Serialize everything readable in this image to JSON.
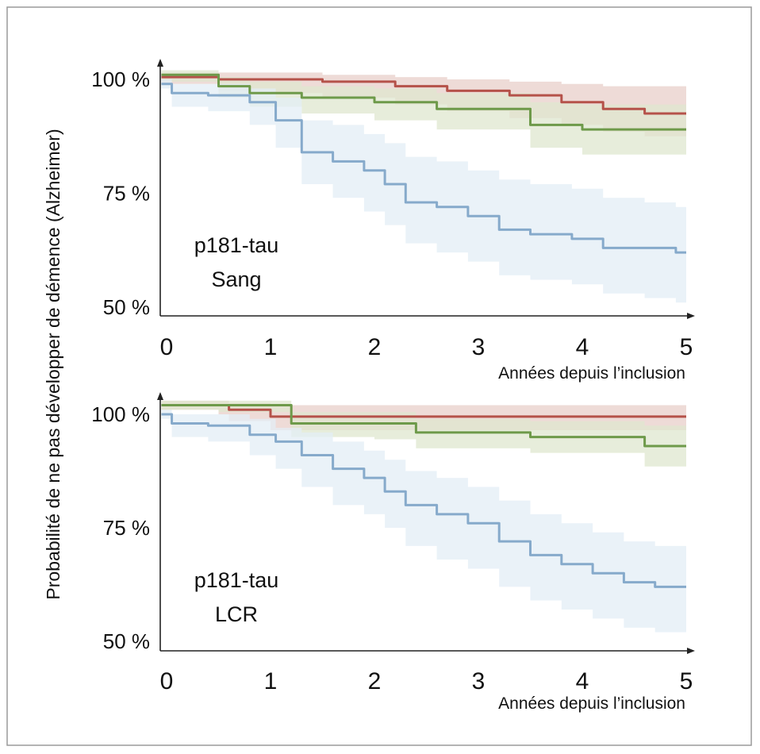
{
  "figure": {
    "ylabel": "Probabilité de ne pas développer de démence (Alzheimer)"
  },
  "colors": {
    "red": "#b5524a",
    "green": "#6e9a4a",
    "blue": "#86aacb",
    "red_band": "#e8cfc9",
    "green_band": "#dfe7cf",
    "blue_band": "#e3edf5"
  },
  "chart_data": [
    {
      "type": "line",
      "step": true,
      "annotation": [
        "p181-tau",
        "Sang"
      ],
      "xlabel": "Années depuis l’inclusion",
      "xticks": [
        "0",
        "1",
        "2",
        "3",
        "4",
        "5"
      ],
      "yticks": [
        "50 %",
        "75 %",
        "100 %"
      ],
      "xlim": [
        0,
        5
      ],
      "ylim": [
        49,
        105
      ],
      "series": [
        {
          "color": "red",
          "x": [
            -0.05,
            0.5,
            1.0,
            1.5,
            2.2,
            2.7,
            3.3,
            3.8,
            4.2,
            4.6,
            5.0
          ],
          "y": [
            100.5,
            100.0,
            100.0,
            99.5,
            98.5,
            97.5,
            96.5,
            95.0,
            93.5,
            92.5,
            92.5
          ],
          "upper": [
            101.5,
            101.5,
            101.5,
            101.0,
            100.5,
            100.0,
            99.5,
            99.0,
            98.5,
            98.5,
            98.0
          ],
          "lower": [
            99.0,
            97.5,
            97.0,
            96.0,
            94.5,
            93.0,
            91.5,
            90.0,
            88.5,
            87.5,
            87.0
          ]
        },
        {
          "color": "green",
          "x": [
            -0.05,
            0.5,
            0.8,
            1.3,
            2.0,
            2.6,
            3.5,
            4.0,
            5.0
          ],
          "y": [
            101.0,
            98.5,
            97.0,
            96.0,
            95.0,
            93.5,
            90.0,
            89.0,
            89.0
          ],
          "upper": [
            102.0,
            100.5,
            99.5,
            98.5,
            98.0,
            97.0,
            95.0,
            94.5,
            94.0
          ],
          "lower": [
            99.5,
            96.0,
            94.0,
            92.5,
            91.0,
            89.0,
            85.0,
            83.5,
            83.0
          ]
        },
        {
          "color": "blue",
          "x": [
            -0.05,
            0.05,
            0.4,
            0.8,
            1.05,
            1.3,
            1.6,
            1.9,
            2.1,
            2.3,
            2.6,
            2.9,
            3.2,
            3.5,
            3.9,
            4.2,
            4.6,
            4.9,
            5.0
          ],
          "y": [
            99.0,
            97.0,
            96.5,
            95.0,
            91.0,
            84.0,
            82.0,
            80.0,
            77.0,
            73.0,
            72.0,
            70.0,
            67.0,
            66.0,
            65.0,
            63.0,
            63.0,
            62.0,
            62.0
          ],
          "upper": [
            100.0,
            99.0,
            99.0,
            98.0,
            96.0,
            91.0,
            90.0,
            88.0,
            86.0,
            83.0,
            82.0,
            80.0,
            78.0,
            77.0,
            76.0,
            74.0,
            73.0,
            72.0,
            71.0
          ],
          "lower": [
            98.0,
            94.0,
            93.0,
            90.0,
            85.0,
            77.0,
            74.0,
            71.0,
            68.0,
            64.0,
            62.0,
            60.0,
            57.0,
            56.0,
            55.0,
            53.0,
            52.0,
            51.0,
            51.0
          ]
        }
      ]
    },
    {
      "type": "line",
      "step": true,
      "annotation": [
        "p181-tau",
        "LCR"
      ],
      "xlabel": "Années depuis l’inclusion",
      "xticks": [
        "0",
        "1",
        "2",
        "3",
        "4",
        "5"
      ],
      "yticks": [
        "50 %",
        "75 %",
        "100 %"
      ],
      "xlim": [
        0,
        5
      ],
      "ylim": [
        49,
        105
      ],
      "series": [
        {
          "color": "red",
          "x": [
            -0.05,
            0.5,
            0.6,
            1.0,
            5.0
          ],
          "y": [
            102.0,
            102.0,
            101.0,
            99.5,
            99.5
          ],
          "upper": [
            103.0,
            103.0,
            102.5,
            102.0,
            102.0
          ],
          "lower": [
            101.0,
            100.0,
            98.5,
            96.5,
            96.0
          ]
        },
        {
          "color": "green",
          "x": [
            -0.05,
            0.5,
            0.9,
            1.2,
            2.0,
            2.4,
            3.5,
            4.6,
            5.0
          ],
          "y": [
            102.0,
            102.0,
            102.0,
            98.0,
            98.0,
            96.0,
            95.0,
            93.0,
            93.0
          ],
          "upper": [
            103.0,
            103.0,
            103.0,
            100.5,
            100.5,
            99.0,
            98.5,
            97.5,
            97.0
          ],
          "lower": [
            101.0,
            100.5,
            100.5,
            95.0,
            94.5,
            92.5,
            91.5,
            88.5,
            88.0
          ]
        },
        {
          "color": "blue",
          "x": [
            -0.05,
            0.05,
            0.4,
            0.8,
            1.05,
            1.3,
            1.6,
            1.9,
            2.1,
            2.3,
            2.6,
            2.9,
            3.2,
            3.5,
            3.8,
            4.1,
            4.4,
            4.7,
            5.0
          ],
          "y": [
            100.0,
            98.0,
            97.5,
            95.5,
            94.0,
            91.0,
            88.0,
            86.0,
            83.0,
            80.0,
            78.0,
            76.0,
            72.0,
            69.0,
            67.0,
            65.0,
            63.0,
            62.0,
            62.0
          ],
          "upper": [
            101.0,
            100.0,
            100.0,
            99.0,
            97.0,
            96.0,
            94.0,
            92.0,
            90.0,
            87.5,
            86.0,
            84.0,
            81.0,
            78.0,
            76.0,
            74.0,
            72.0,
            71.0,
            70.0
          ],
          "lower": [
            99.0,
            95.0,
            94.0,
            91.0,
            88.0,
            84.0,
            80.0,
            78.0,
            75.0,
            71.0,
            68.0,
            66.0,
            62.0,
            59.0,
            57.0,
            55.0,
            53.0,
            52.0,
            52.0
          ]
        }
      ]
    }
  ]
}
